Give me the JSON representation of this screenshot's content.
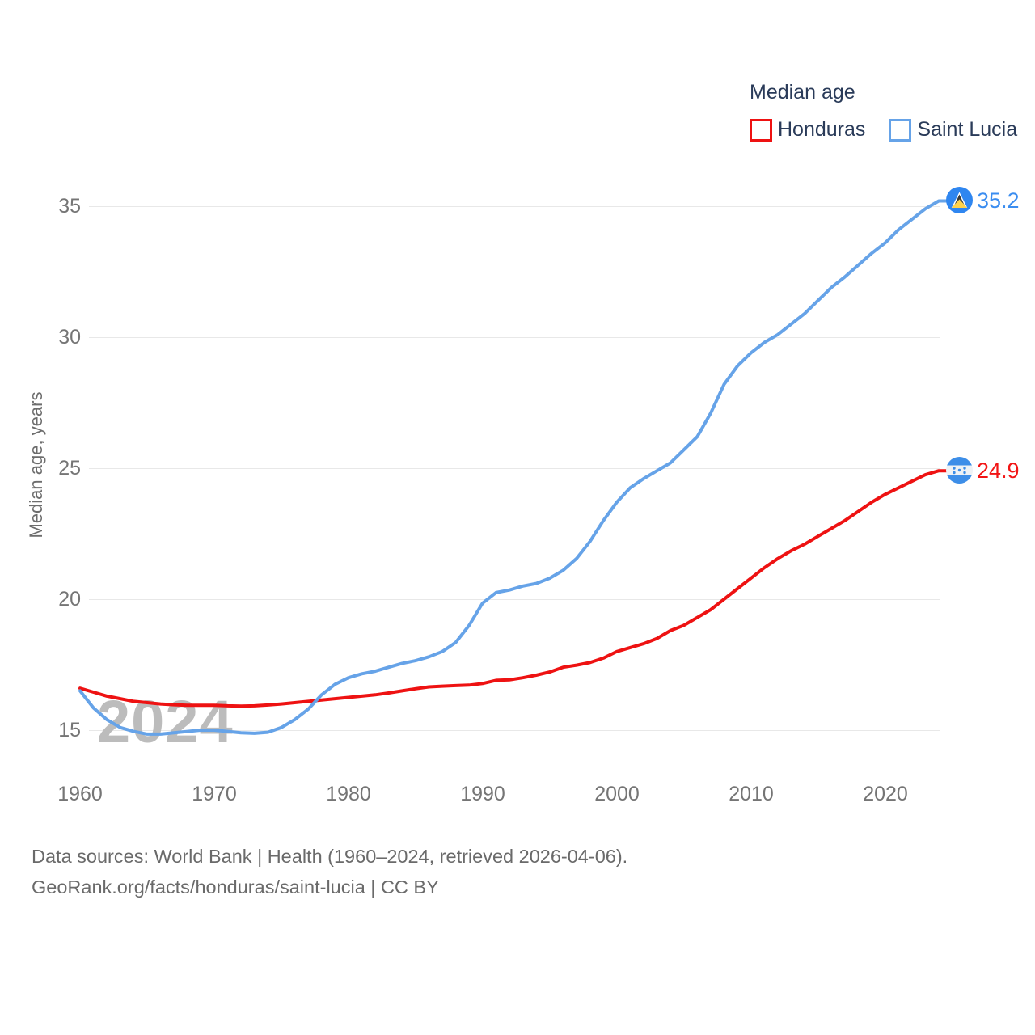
{
  "legend": {
    "title": "Median age",
    "items": [
      {
        "label": "Honduras",
        "color": "#ee1212"
      },
      {
        "label": "Saint Lucia",
        "color": "#66a3e8"
      }
    ]
  },
  "y_axis": {
    "title": "Median age, years",
    "ticks": [
      "35",
      "30",
      "25",
      "20",
      "15"
    ]
  },
  "x_axis": {
    "ticks": [
      "1960",
      "1970",
      "1980",
      "1990",
      "2000",
      "2010",
      "2020"
    ]
  },
  "watermark": "2024",
  "end_labels": {
    "saint_lucia": "35.2",
    "honduras": "24.9"
  },
  "footer": {
    "line1": "Data sources: World Bank | Health (1960–2024, retrieved 2026-04-06).",
    "line2": "GeoRank.org/facts/honduras/saint-lucia | CC BY"
  },
  "chart_data": {
    "type": "line",
    "title": "Median age",
    "xlabel": "",
    "ylabel": "Median age, years",
    "x_range": [
      1960,
      2024
    ],
    "ylim": [
      13.5,
      36.5
    ],
    "grid": "horizontal",
    "legend_position": "top-right",
    "x": [
      1960,
      1961,
      1962,
      1963,
      1964,
      1965,
      1966,
      1967,
      1968,
      1969,
      1970,
      1971,
      1972,
      1973,
      1974,
      1975,
      1976,
      1977,
      1978,
      1979,
      1980,
      1981,
      1982,
      1983,
      1984,
      1985,
      1986,
      1987,
      1988,
      1989,
      1990,
      1991,
      1992,
      1993,
      1994,
      1995,
      1996,
      1997,
      1998,
      1999,
      2000,
      2001,
      2002,
      2003,
      2004,
      2005,
      2006,
      2007,
      2008,
      2009,
      2010,
      2011,
      2012,
      2013,
      2014,
      2015,
      2016,
      2017,
      2018,
      2019,
      2020,
      2021,
      2022,
      2023,
      2024
    ],
    "series": [
      {
        "name": "Honduras",
        "color": "#ee1212",
        "end_value": 24.9,
        "values": [
          16.6,
          16.45,
          16.3,
          16.2,
          16.1,
          16.05,
          16.0,
          15.97,
          15.95,
          15.95,
          15.95,
          15.93,
          15.92,
          15.93,
          15.96,
          16.0,
          16.05,
          16.1,
          16.15,
          16.2,
          16.25,
          16.3,
          16.35,
          16.42,
          16.5,
          16.58,
          16.65,
          16.68,
          16.7,
          16.72,
          16.78,
          16.9,
          16.92,
          17.0,
          17.1,
          17.22,
          17.4,
          17.48,
          17.58,
          17.75,
          18.0,
          18.15,
          18.3,
          18.5,
          18.8,
          19.0,
          19.3,
          19.6,
          20.0,
          20.4,
          20.8,
          21.2,
          21.55,
          21.85,
          22.1,
          22.4,
          22.7,
          23.0,
          23.35,
          23.7,
          24.0,
          24.25,
          24.5,
          24.75,
          24.9
        ]
      },
      {
        "name": "Saint Lucia",
        "color": "#66a3e8",
        "end_value": 35.2,
        "values": [
          16.5,
          15.85,
          15.4,
          15.1,
          14.95,
          14.85,
          14.85,
          14.9,
          14.95,
          15.0,
          15.0,
          14.95,
          14.9,
          14.88,
          14.92,
          15.1,
          15.4,
          15.8,
          16.35,
          16.75,
          17.0,
          17.15,
          17.25,
          17.4,
          17.55,
          17.65,
          17.8,
          18.0,
          18.35,
          19.0,
          19.85,
          20.25,
          20.35,
          20.5,
          20.6,
          20.8,
          21.1,
          21.55,
          22.2,
          23.0,
          23.7,
          24.25,
          24.6,
          24.9,
          25.2,
          25.7,
          26.2,
          27.1,
          28.2,
          28.9,
          29.4,
          29.8,
          30.1,
          30.5,
          30.9,
          31.4,
          31.9,
          32.3,
          32.75,
          33.2,
          33.6,
          34.1,
          34.5,
          34.9,
          35.2
        ]
      }
    ]
  }
}
